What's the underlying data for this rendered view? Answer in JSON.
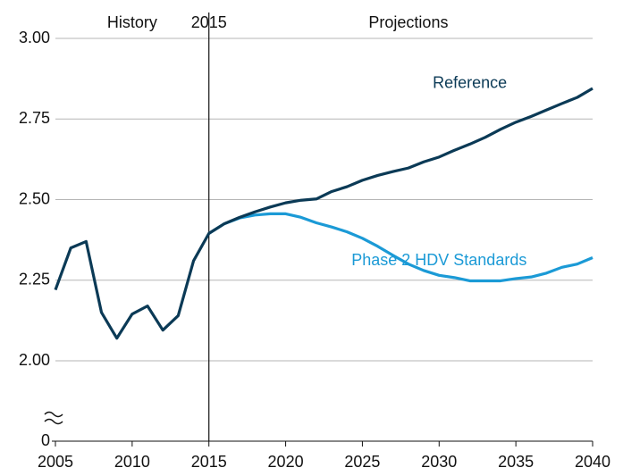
{
  "chart_data": {
    "type": "line",
    "x": [
      2005,
      2006,
      2007,
      2008,
      2009,
      2010,
      2011,
      2012,
      2013,
      2014,
      2015,
      2016,
      2017,
      2018,
      2019,
      2020,
      2021,
      2022,
      2023,
      2024,
      2025,
      2026,
      2027,
      2028,
      2029,
      2030,
      2031,
      2032,
      2033,
      2034,
      2035,
      2036,
      2037,
      2038,
      2039,
      2040
    ],
    "series": [
      {
        "name": "Phase 2 HDV Standards",
        "color": "#1b9ad6",
        "values": [
          null,
          null,
          null,
          null,
          null,
          null,
          null,
          null,
          null,
          null,
          2.395,
          2.425,
          2.443,
          2.452,
          2.456,
          2.456,
          2.445,
          2.428,
          2.415,
          2.4,
          2.38,
          2.355,
          2.327,
          2.3,
          2.28,
          2.265,
          2.258,
          2.248,
          2.248,
          2.248,
          2.255,
          2.26,
          2.272,
          2.29,
          2.3,
          2.32
        ]
      },
      {
        "name": "Reference",
        "color": "#0b3a56",
        "values": [
          2.22,
          2.35,
          2.37,
          2.15,
          2.07,
          2.145,
          2.17,
          2.095,
          2.14,
          2.31,
          2.395,
          2.425,
          2.445,
          2.462,
          2.477,
          2.49,
          2.498,
          2.502,
          2.525,
          2.54,
          2.56,
          2.575,
          2.587,
          2.598,
          2.617,
          2.632,
          2.653,
          2.672,
          2.693,
          2.718,
          2.74,
          2.758,
          2.778,
          2.798,
          2.817,
          2.845
        ]
      }
    ],
    "annotations": [
      {
        "text": "History",
        "x": 2010
      },
      {
        "text": "2015",
        "x": 2015
      },
      {
        "text": "Projections",
        "x": 2028
      }
    ],
    "divider_x": 2015,
    "xlim": [
      2005,
      2040
    ],
    "xticks": [
      2005,
      2010,
      2015,
      2020,
      2025,
      2030,
      2035,
      2040
    ],
    "ylim": [
      0,
      3
    ],
    "ybreak": [
      0,
      2
    ],
    "yticks": [
      0,
      {
        "value": 2,
        "label": "2.00"
      },
      {
        "value": 2.25,
        "label": "2.25"
      },
      {
        "value": 2.5,
        "label": "2.50"
      },
      {
        "value": 2.75,
        "label": "2.75"
      },
      {
        "value": 3,
        "label": "3.00"
      }
    ],
    "grid": true
  }
}
